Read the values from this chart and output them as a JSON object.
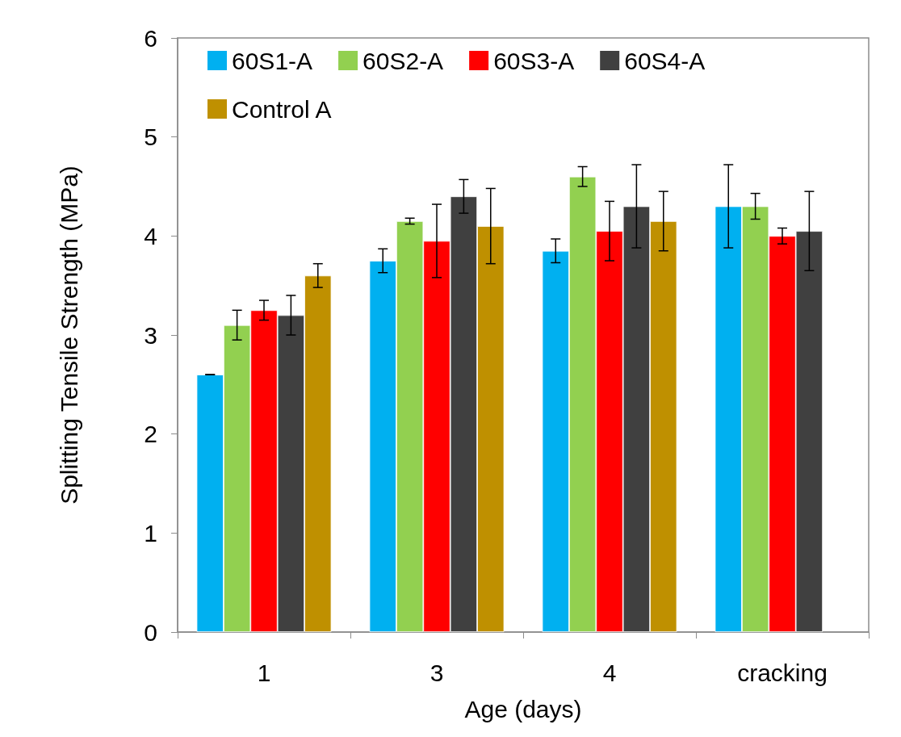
{
  "chart_data": {
    "type": "bar",
    "xlabel": "Age (days)",
    "ylabel": "Splitting Tensile Strength (MPa)",
    "categories": [
      "1",
      "3",
      "4",
      "cracking"
    ],
    "series": [
      {
        "name": "60S1-A",
        "color": "#00b0f0",
        "values": [
          2.6,
          3.75,
          3.85,
          4.3
        ],
        "errors": [
          0,
          0.12,
          0.12,
          0.42
        ]
      },
      {
        "name": "60S2-A",
        "color": "#92d050",
        "values": [
          3.1,
          4.15,
          4.6,
          4.3
        ],
        "errors": [
          0.15,
          0.03,
          0.1,
          0.13
        ]
      },
      {
        "name": "60S3-A",
        "color": "#ff0000",
        "values": [
          3.25,
          3.95,
          4.05,
          4.0
        ],
        "errors": [
          0.1,
          0.37,
          0.3,
          0.08
        ]
      },
      {
        "name": "60S4-A",
        "color": "#404040",
        "values": [
          3.2,
          4.4,
          4.3,
          4.05
        ],
        "errors": [
          0.2,
          0.17,
          0.42,
          0.4
        ]
      },
      {
        "name": "Control A",
        "color": "#bf9000",
        "values": [
          3.6,
          4.1,
          4.15,
          null
        ],
        "errors": [
          0.12,
          0.38,
          0.3,
          null
        ]
      }
    ],
    "ylim": [
      0,
      6
    ],
    "yticks": [
      0,
      1,
      2,
      3,
      4,
      5,
      6
    ],
    "grid": false,
    "legend": "top"
  }
}
